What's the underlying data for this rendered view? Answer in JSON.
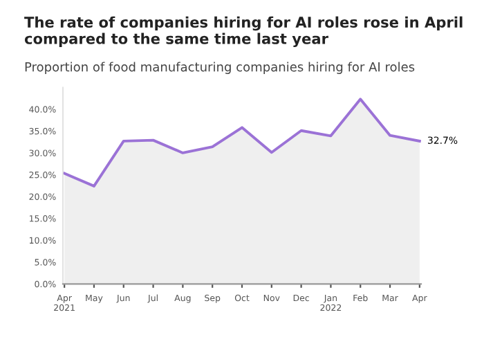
{
  "chart_data": {
    "type": "area",
    "title": "The rate of companies hiring for AI roles rose in April\ncompared to the same time last year",
    "subtitle": "Proportion of food manufacturing companies hiring for AI roles",
    "categories": [
      "Apr\n2021",
      "May",
      "Jun",
      "Jul",
      "Aug",
      "Sep",
      "Oct",
      "Nov",
      "Dec",
      "Jan\n2022",
      "Feb",
      "Mar",
      "Apr"
    ],
    "series": [
      {
        "color": "#9b72d6",
        "values": [
          25.3,
          22.4,
          32.7,
          32.9,
          30.0,
          31.4,
          35.8,
          30.1,
          35.1,
          33.9,
          42.3,
          34.0,
          32.7
        ],
        "value_labels": [
          null,
          null,
          null,
          null,
          null,
          null,
          null,
          null,
          null,
          null,
          null,
          null,
          "32.7%"
        ]
      }
    ],
    "ylim": [
      0,
      45
    ],
    "yticks": [
      {
        "value": 0,
        "label": "0.0%"
      },
      {
        "value": 5,
        "label": "5.0%"
      },
      {
        "value": 10,
        "label": "10.0%"
      },
      {
        "value": 15,
        "label": "15.0%"
      },
      {
        "value": 20,
        "label": "20.0%"
      },
      {
        "value": 25,
        "label": "25.0%"
      },
      {
        "value": 30,
        "label": "30.0%"
      },
      {
        "value": 35,
        "label": "35.0%"
      },
      {
        "value": 40,
        "label": "40.0%"
      }
    ],
    "grid": false,
    "marker": "none",
    "line_style": "solid"
  }
}
